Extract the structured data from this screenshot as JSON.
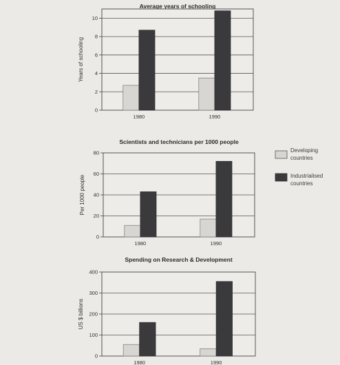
{
  "legend": {
    "items": [
      {
        "label_line1": "Developing",
        "label_line2": "countries",
        "color": "#d8d6d2"
      },
      {
        "label_line1": "Industrialised",
        "label_line2": "countries",
        "color": "#3a3a3c"
      }
    ]
  },
  "chart_data": [
    {
      "type": "bar",
      "title": "Average years of schooling",
      "ylabel": "Years of schooling",
      "xlabel": "",
      "categories": [
        "1980",
        "1990"
      ],
      "ylim": [
        0,
        11
      ],
      "yticks": [
        0,
        2,
        4,
        6,
        8,
        10
      ],
      "grid": true,
      "legend_position": "none",
      "series": [
        {
          "name": "Developing countries",
          "values": [
            2.7,
            3.5
          ],
          "color": "#d8d6d2"
        },
        {
          "name": "Industrialised countries",
          "values": [
            8.7,
            10.8
          ],
          "color": "#3a3a3c"
        }
      ]
    },
    {
      "type": "bar",
      "title": "Scientists and technicians per 1000 people",
      "ylabel": "Per 1000 people",
      "xlabel": "",
      "categories": [
        "1980",
        "1990"
      ],
      "ylim": [
        0,
        80
      ],
      "yticks": [
        0,
        20,
        40,
        60,
        80
      ],
      "grid": true,
      "legend_position": "right",
      "series": [
        {
          "name": "Developing countries",
          "values": [
            11,
            17
          ],
          "color": "#d8d6d2"
        },
        {
          "name": "Industrialised countries",
          "values": [
            43,
            72
          ],
          "color": "#3a3a3c"
        }
      ]
    },
    {
      "type": "bar",
      "title": "Spending on Research & Development",
      "ylabel": "US $ billions",
      "xlabel": "",
      "categories": [
        "1980",
        "1990"
      ],
      "ylim": [
        0,
        400
      ],
      "yticks": [
        0,
        100,
        200,
        300,
        400
      ],
      "grid": true,
      "legend_position": "none",
      "series": [
        {
          "name": "Developing countries",
          "values": [
            55,
            35
          ],
          "color": "#d8d6d2"
        },
        {
          "name": "Industrialised countries",
          "values": [
            160,
            355
          ],
          "color": "#3a3a3c"
        }
      ]
    }
  ]
}
